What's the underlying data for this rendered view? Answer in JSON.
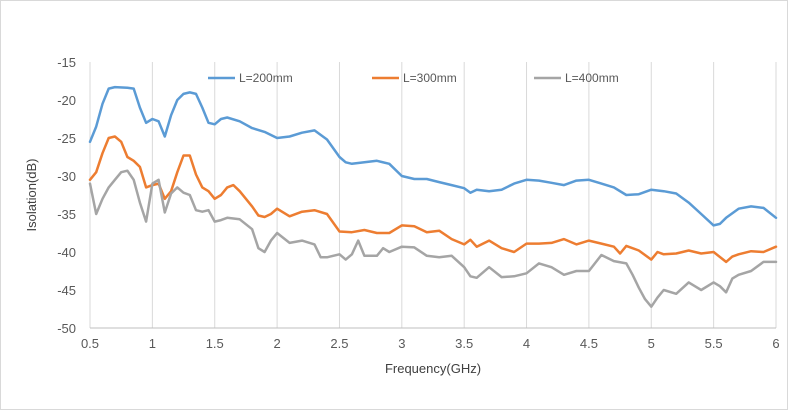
{
  "chart_data": {
    "type": "line",
    "title": "",
    "xlabel": "Frequency(GHz)",
    "ylabel": "Isolation(dB)",
    "xlim": [
      0.5,
      6
    ],
    "ylim": [
      -50,
      -15
    ],
    "xticks": [
      0.5,
      1,
      1.5,
      2,
      2.5,
      3,
      3.5,
      4,
      4.5,
      5,
      5.5,
      6
    ],
    "xtick_labels": [
      "0.5",
      "1",
      "1.5",
      "2",
      "2.5",
      "3",
      "3.5",
      "4",
      "4.5",
      "5",
      "5.5",
      "6"
    ],
    "yticks": [
      -15,
      -20,
      -25,
      -30,
      -35,
      -40,
      -45,
      -50
    ],
    "ytick_labels": [
      "-15",
      "-20",
      "-25",
      "-30",
      "-35",
      "-40",
      "-45",
      "-50"
    ],
    "grid": "vertical",
    "legend_position": "top",
    "series": [
      {
        "name": "L=200mm",
        "color": "#5b9bd5",
        "points": [
          [
            0.5,
            -25.5
          ],
          [
            0.55,
            -23.5
          ],
          [
            0.6,
            -20.5
          ],
          [
            0.65,
            -18.5
          ],
          [
            0.7,
            -18.3
          ],
          [
            0.8,
            -18.4
          ],
          [
            0.85,
            -18.5
          ],
          [
            0.9,
            -21
          ],
          [
            0.95,
            -23
          ],
          [
            1.0,
            -22.5
          ],
          [
            1.05,
            -22.8
          ],
          [
            1.1,
            -24.8
          ],
          [
            1.15,
            -22
          ],
          [
            1.2,
            -20
          ],
          [
            1.25,
            -19.2
          ],
          [
            1.3,
            -19
          ],
          [
            1.35,
            -19.2
          ],
          [
            1.4,
            -21
          ],
          [
            1.45,
            -23
          ],
          [
            1.5,
            -23.2
          ],
          [
            1.55,
            -22.5
          ],
          [
            1.6,
            -22.3
          ],
          [
            1.7,
            -22.8
          ],
          [
            1.8,
            -23.7
          ],
          [
            1.9,
            -24.2
          ],
          [
            2.0,
            -25
          ],
          [
            2.1,
            -24.8
          ],
          [
            2.2,
            -24.3
          ],
          [
            2.3,
            -24
          ],
          [
            2.4,
            -25.2
          ],
          [
            2.5,
            -27.5
          ],
          [
            2.55,
            -28.2
          ],
          [
            2.6,
            -28.4
          ],
          [
            2.7,
            -28.2
          ],
          [
            2.8,
            -28
          ],
          [
            2.9,
            -28.4
          ],
          [
            3.0,
            -30
          ],
          [
            3.1,
            -30.4
          ],
          [
            3.2,
            -30.4
          ],
          [
            3.3,
            -30.8
          ],
          [
            3.4,
            -31.2
          ],
          [
            3.5,
            -31.6
          ],
          [
            3.55,
            -32.2
          ],
          [
            3.6,
            -31.8
          ],
          [
            3.7,
            -32
          ],
          [
            3.8,
            -31.8
          ],
          [
            3.9,
            -31
          ],
          [
            4.0,
            -30.5
          ],
          [
            4.1,
            -30.6
          ],
          [
            4.2,
            -30.9
          ],
          [
            4.3,
            -31.2
          ],
          [
            4.4,
            -30.6
          ],
          [
            4.5,
            -30.5
          ],
          [
            4.6,
            -31
          ],
          [
            4.7,
            -31.5
          ],
          [
            4.8,
            -32.5
          ],
          [
            4.9,
            -32.4
          ],
          [
            5.0,
            -31.8
          ],
          [
            5.1,
            -32
          ],
          [
            5.2,
            -32.3
          ],
          [
            5.3,
            -33.5
          ],
          [
            5.4,
            -35
          ],
          [
            5.5,
            -36.5
          ],
          [
            5.55,
            -36.3
          ],
          [
            5.6,
            -35.5
          ],
          [
            5.7,
            -34.3
          ],
          [
            5.8,
            -34
          ],
          [
            5.9,
            -34.2
          ],
          [
            6.0,
            -35.5
          ]
        ]
      },
      {
        "name": "L=300mm",
        "color": "#ed7d31",
        "points": [
          [
            0.5,
            -30.5
          ],
          [
            0.55,
            -29.5
          ],
          [
            0.6,
            -27
          ],
          [
            0.65,
            -25
          ],
          [
            0.7,
            -24.8
          ],
          [
            0.75,
            -25.5
          ],
          [
            0.8,
            -27.5
          ],
          [
            0.85,
            -28
          ],
          [
            0.9,
            -28.8
          ],
          [
            0.95,
            -31.5
          ],
          [
            1.0,
            -31.2
          ],
          [
            1.05,
            -31
          ],
          [
            1.1,
            -33
          ],
          [
            1.15,
            -32
          ],
          [
            1.2,
            -29.5
          ],
          [
            1.25,
            -27.3
          ],
          [
            1.3,
            -27.3
          ],
          [
            1.35,
            -29.8
          ],
          [
            1.4,
            -31.5
          ],
          [
            1.45,
            -32
          ],
          [
            1.5,
            -33
          ],
          [
            1.55,
            -32.5
          ],
          [
            1.6,
            -31.5
          ],
          [
            1.65,
            -31.2
          ],
          [
            1.7,
            -32
          ],
          [
            1.8,
            -34
          ],
          [
            1.85,
            -35.2
          ],
          [
            1.9,
            -35.4
          ],
          [
            1.95,
            -35
          ],
          [
            2.0,
            -34.3
          ],
          [
            2.1,
            -35.3
          ],
          [
            2.2,
            -34.7
          ],
          [
            2.3,
            -34.5
          ],
          [
            2.4,
            -35
          ],
          [
            2.5,
            -37.3
          ],
          [
            2.6,
            -37.4
          ],
          [
            2.7,
            -37.1
          ],
          [
            2.8,
            -37.5
          ],
          [
            2.9,
            -37.5
          ],
          [
            3.0,
            -36.5
          ],
          [
            3.1,
            -36.6
          ],
          [
            3.2,
            -37.4
          ],
          [
            3.3,
            -37.2
          ],
          [
            3.4,
            -38.3
          ],
          [
            3.5,
            -39
          ],
          [
            3.55,
            -38.4
          ],
          [
            3.6,
            -39.3
          ],
          [
            3.7,
            -38.5
          ],
          [
            3.8,
            -39.5
          ],
          [
            3.9,
            -40
          ],
          [
            4.0,
            -38.9
          ],
          [
            4.1,
            -38.9
          ],
          [
            4.2,
            -38.8
          ],
          [
            4.3,
            -38.3
          ],
          [
            4.4,
            -39
          ],
          [
            4.5,
            -38.5
          ],
          [
            4.6,
            -38.9
          ],
          [
            4.7,
            -39.3
          ],
          [
            4.75,
            -40.2
          ],
          [
            4.8,
            -39.2
          ],
          [
            4.9,
            -39.8
          ],
          [
            5.0,
            -41
          ],
          [
            5.05,
            -40
          ],
          [
            5.1,
            -40.3
          ],
          [
            5.2,
            -40.2
          ],
          [
            5.3,
            -39.8
          ],
          [
            5.4,
            -40.2
          ],
          [
            5.5,
            -40
          ],
          [
            5.6,
            -41.3
          ],
          [
            5.65,
            -40.6
          ],
          [
            5.7,
            -40.3
          ],
          [
            5.8,
            -39.9
          ],
          [
            5.9,
            -40
          ],
          [
            6.0,
            -39.3
          ]
        ]
      },
      {
        "name": "L=400mm",
        "color": "#a5a5a5",
        "points": [
          [
            0.5,
            -31
          ],
          [
            0.55,
            -35
          ],
          [
            0.6,
            -33
          ],
          [
            0.65,
            -31.5
          ],
          [
            0.7,
            -30.5
          ],
          [
            0.75,
            -29.5
          ],
          [
            0.8,
            -29.3
          ],
          [
            0.85,
            -30.5
          ],
          [
            0.9,
            -33.5
          ],
          [
            0.95,
            -36
          ],
          [
            1.0,
            -31
          ],
          [
            1.05,
            -30.5
          ],
          [
            1.1,
            -34.8
          ],
          [
            1.15,
            -32.3
          ],
          [
            1.2,
            -31.5
          ],
          [
            1.25,
            -32.2
          ],
          [
            1.3,
            -32.5
          ],
          [
            1.35,
            -34.5
          ],
          [
            1.4,
            -34.7
          ],
          [
            1.45,
            -34.5
          ],
          [
            1.5,
            -36
          ],
          [
            1.55,
            -35.8
          ],
          [
            1.6,
            -35.5
          ],
          [
            1.7,
            -35.7
          ],
          [
            1.8,
            -37
          ],
          [
            1.85,
            -39.5
          ],
          [
            1.9,
            -40
          ],
          [
            1.95,
            -38.5
          ],
          [
            2.0,
            -37.5
          ],
          [
            2.1,
            -38.8
          ],
          [
            2.2,
            -38.5
          ],
          [
            2.3,
            -39
          ],
          [
            2.35,
            -40.7
          ],
          [
            2.4,
            -40.7
          ],
          [
            2.5,
            -40.3
          ],
          [
            2.55,
            -41
          ],
          [
            2.6,
            -40.3
          ],
          [
            2.65,
            -38.5
          ],
          [
            2.7,
            -40.5
          ],
          [
            2.8,
            -40.5
          ],
          [
            2.85,
            -39.5
          ],
          [
            2.9,
            -40
          ],
          [
            3.0,
            -39.3
          ],
          [
            3.1,
            -39.4
          ],
          [
            3.2,
            -40.5
          ],
          [
            3.3,
            -40.7
          ],
          [
            3.4,
            -40.5
          ],
          [
            3.5,
            -42
          ],
          [
            3.55,
            -43.2
          ],
          [
            3.6,
            -43.4
          ],
          [
            3.7,
            -42
          ],
          [
            3.8,
            -43.3
          ],
          [
            3.9,
            -43.2
          ],
          [
            4.0,
            -42.8
          ],
          [
            4.1,
            -41.5
          ],
          [
            4.2,
            -42
          ],
          [
            4.3,
            -43
          ],
          [
            4.4,
            -42.5
          ],
          [
            4.5,
            -42.5
          ],
          [
            4.6,
            -40.4
          ],
          [
            4.7,
            -41.2
          ],
          [
            4.8,
            -41.5
          ],
          [
            4.85,
            -43
          ],
          [
            4.9,
            -44.7
          ],
          [
            4.95,
            -46.2
          ],
          [
            5.0,
            -47.2
          ],
          [
            5.05,
            -46
          ],
          [
            5.1,
            -45
          ],
          [
            5.2,
            -45.5
          ],
          [
            5.3,
            -44
          ],
          [
            5.35,
            -44.5
          ],
          [
            5.4,
            -45
          ],
          [
            5.5,
            -44
          ],
          [
            5.55,
            -44.5
          ],
          [
            5.6,
            -45.3
          ],
          [
            5.65,
            -43.5
          ],
          [
            5.7,
            -43
          ],
          [
            5.8,
            -42.5
          ],
          [
            5.9,
            -41.3
          ],
          [
            6.0,
            -41.3
          ]
        ]
      }
    ]
  }
}
